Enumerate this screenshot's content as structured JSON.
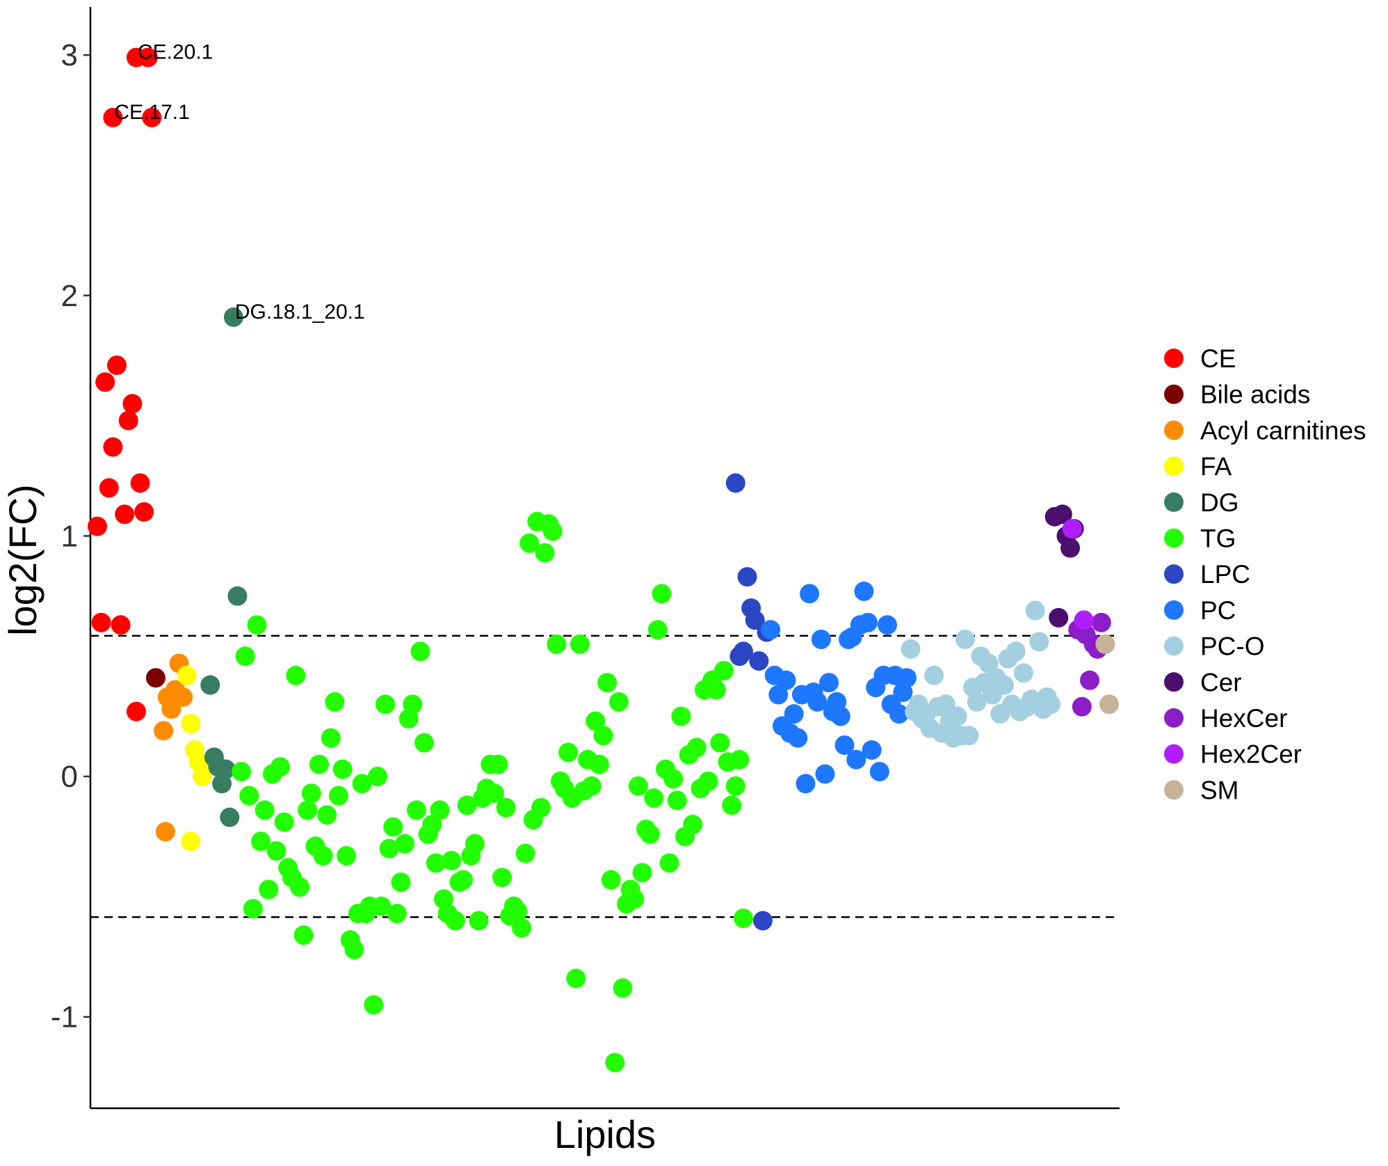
{
  "chart_data": {
    "type": "scatter",
    "title": "",
    "xlabel": "Lipids",
    "ylabel": "log2(FC)",
    "xlim": [
      0,
      262
    ],
    "ylim": [
      -1.38,
      3.2
    ],
    "yticks": [
      -1,
      0,
      1,
      2,
      3
    ],
    "threshold_lines": [
      0.585,
      -0.585
    ],
    "grid": false,
    "legend_position": "right",
    "annotations": [
      {
        "text": "CE.20.1",
        "x": 12,
        "y": 2.99
      },
      {
        "text": "CE.17.1",
        "x": 6,
        "y": 2.74
      },
      {
        "text": "DG.18.1_20.1",
        "x": 37,
        "y": 1.91
      }
    ],
    "series": [
      {
        "name": "CE",
        "color": "#ff0000",
        "x": [
          2,
          3,
          4,
          5,
          6,
          7,
          8,
          9,
          10,
          11,
          12,
          13,
          14,
          15,
          16,
          12,
          6
        ],
        "y": [
          1.04,
          0.64,
          1.64,
          1.2,
          1.37,
          1.71,
          0.63,
          1.09,
          1.48,
          1.55,
          0.27,
          1.22,
          1.1,
          2.99,
          2.74,
          2.99,
          2.74
        ]
      },
      {
        "name": "Bile acids",
        "color": "#7b0000",
        "x": [
          17
        ],
        "y": [
          0.41
        ]
      },
      {
        "name": "Acyl carnitines",
        "color": "#ff8c00",
        "x": [
          19,
          20,
          21,
          22,
          23,
          24,
          19.5
        ],
        "y": [
          0.19,
          0.33,
          0.28,
          0.36,
          0.47,
          0.33,
          -0.23
        ]
      },
      {
        "name": "FA",
        "color": "#ffff00",
        "x": [
          25,
          26,
          27,
          28,
          29,
          30,
          26
        ],
        "y": [
          0.42,
          0.22,
          0.11,
          0.06,
          0.0,
          0.04,
          -0.27
        ]
      },
      {
        "name": "DG",
        "color": "#367d62",
        "x": [
          31,
          32,
          33,
          34,
          35,
          36,
          37,
          38
        ],
        "y": [
          0.38,
          0.08,
          0.04,
          -0.03,
          0.03,
          -0.17,
          1.91,
          0.75
        ]
      },
      {
        "name": "TG",
        "color": "#22ff00",
        "x": [
          39,
          40,
          41,
          42,
          43,
          44,
          45,
          46,
          47,
          48,
          49,
          50,
          51,
          52,
          53,
          54,
          55,
          56,
          57,
          58,
          59,
          60,
          61,
          62,
          63,
          64,
          65,
          66,
          67,
          68,
          69,
          70,
          71,
          72,
          73,
          74,
          75,
          76,
          77,
          78,
          79,
          80,
          81,
          82,
          83,
          84,
          85,
          86,
          87,
          88,
          89,
          90,
          91,
          92,
          93,
          94,
          95,
          96,
          97,
          98,
          99,
          100,
          101,
          102,
          103,
          104,
          105,
          106,
          107,
          108,
          109,
          110,
          111,
          112,
          113,
          114,
          115,
          116,
          117,
          118,
          119,
          120,
          121,
          122,
          123,
          124,
          125,
          126,
          127,
          128,
          129,
          130,
          131,
          132,
          133,
          134,
          135,
          136,
          137,
          138,
          139,
          140,
          141,
          142,
          143,
          144,
          145,
          146,
          147,
          148,
          149,
          150,
          151,
          152,
          153,
          154,
          155,
          156,
          157,
          158,
          159,
          160,
          161,
          162,
          163,
          164,
          165,
          166,
          167,
          168
        ],
        "y": [
          0.02,
          0.5,
          -0.08,
          -0.55,
          0.63,
          -0.27,
          -0.14,
          -0.47,
          0.01,
          -0.31,
          0.04,
          -0.19,
          -0.38,
          -0.42,
          0.42,
          -0.46,
          -0.66,
          -0.14,
          -0.07,
          -0.29,
          0.05,
          -0.33,
          -0.16,
          0.16,
          0.31,
          -0.08,
          0.03,
          -0.33,
          -0.68,
          -0.72,
          -0.57,
          -0.03,
          -0.57,
          -0.54,
          -0.95,
          0.0,
          -0.54,
          0.3,
          -0.3,
          -0.21,
          -0.57,
          -0.44,
          -0.28,
          0.24,
          0.3,
          -0.14,
          0.52,
          0.14,
          -0.24,
          -0.2,
          -0.36,
          -0.14,
          -0.51,
          -0.57,
          -0.35,
          -0.6,
          -0.44,
          -0.43,
          -0.12,
          -0.33,
          -0.28,
          -0.6,
          -0.09,
          -0.05,
          0.05,
          -0.07,
          0.05,
          -0.42,
          -0.13,
          -0.58,
          -0.54,
          -0.56,
          -0.63,
          -0.32,
          0.97,
          -0.18,
          1.06,
          -0.13,
          0.93,
          1.05,
          1.02,
          0.55,
          -0.02,
          -0.05,
          0.1,
          -0.09,
          -0.84,
          0.55,
          -0.06,
          0.07,
          -0.04,
          0.23,
          0.05,
          0.17,
          0.39,
          -0.43,
          -1.19,
          0.31,
          -0.88,
          -0.53,
          -0.47,
          -0.51,
          -0.04,
          -0.4,
          -0.22,
          -0.24,
          -0.09,
          0.61,
          0.76,
          0.03,
          -0.36,
          -0.01,
          -0.1,
          0.25,
          -0.25,
          0.09,
          -0.2,
          0.12,
          -0.05,
          0.36,
          -0.02,
          0.4,
          0.36,
          0.14,
          0.44,
          0.06,
          -0.12,
          -0.04,
          0.07,
          -0.59
        ]
      },
      {
        "name": "LPC",
        "color": "#2c47c3",
        "x": [
          166,
          167,
          168,
          169,
          170,
          171,
          172,
          173,
          174
        ],
        "y": [
          1.22,
          0.5,
          0.52,
          0.83,
          0.7,
          0.65,
          0.48,
          -0.6,
          0.6
        ]
      },
      {
        "name": "PC",
        "color": "#1e78ff",
        "x": [
          175,
          176,
          177,
          178,
          179,
          180,
          181,
          182,
          183,
          184,
          185,
          186,
          187,
          188,
          189,
          190,
          191,
          192,
          193,
          194,
          195,
          196,
          197,
          198,
          199,
          200,
          201,
          202,
          203,
          204,
          205,
          206,
          207,
          208,
          209,
          210
        ],
        "y": [
          0.61,
          0.42,
          0.34,
          0.21,
          0.4,
          0.18,
          0.26,
          0.16,
          0.34,
          -0.03,
          0.76,
          0.35,
          0.31,
          0.57,
          0.01,
          0.39,
          0.27,
          0.31,
          0.25,
          0.13,
          0.57,
          0.58,
          0.07,
          0.63,
          0.77,
          0.64,
          0.11,
          0.37,
          0.02,
          0.42,
          0.63,
          0.3,
          0.42,
          0.26,
          0.35,
          0.41
        ]
      },
      {
        "name": "PC-O",
        "color": "#a3cfe0",
        "x": [
          211,
          212,
          213,
          214,
          215,
          216,
          217,
          218,
          219,
          220,
          221,
          222,
          223,
          224,
          225,
          226,
          227,
          228,
          229,
          230,
          231,
          232,
          233,
          234,
          235,
          236,
          237,
          238,
          239,
          240,
          241,
          242,
          243,
          244,
          245,
          246,
          247
        ],
        "y": [
          0.53,
          0.27,
          0.3,
          0.24,
          0.26,
          0.2,
          0.42,
          0.29,
          0.18,
          0.3,
          0.23,
          0.16,
          0.25,
          0.17,
          0.57,
          0.17,
          0.37,
          0.31,
          0.5,
          0.39,
          0.47,
          0.34,
          0.41,
          0.26,
          0.38,
          0.49,
          0.3,
          0.52,
          0.27,
          0.43,
          0.29,
          0.32,
          0.69,
          0.56,
          0.28,
          0.33,
          0.3
        ]
      },
      {
        "name": "Cer",
        "color": "#4b0f6e",
        "x": [
          248,
          249,
          250,
          251,
          252,
          253
        ],
        "y": [
          1.08,
          0.66,
          1.09,
          1.0,
          0.95,
          1.03
        ]
      },
      {
        "name": "HexCer",
        "color": "#8b1ec8",
        "x": [
          254,
          255,
          256,
          257,
          258,
          259,
          260
        ],
        "y": [
          0.61,
          0.29,
          0.59,
          0.4,
          0.55,
          0.53,
          0.64
        ]
      },
      {
        "name": "Hex2Cer",
        "color": "#b01eff",
        "x": [
          252.5,
          255.5
        ],
        "y": [
          1.03,
          0.65
        ]
      },
      {
        "name": "SM",
        "color": "#c7b29a",
        "x": [
          261,
          262
        ],
        "y": [
          0.55,
          0.3
        ]
      }
    ]
  },
  "legend": {
    "items": [
      {
        "label": "CE",
        "color": "#ff0000"
      },
      {
        "label": "Bile acids",
        "color": "#7b0000"
      },
      {
        "label": "Acyl carnitines",
        "color": "#ff8c00"
      },
      {
        "label": "FA",
        "color": "#ffff00"
      },
      {
        "label": "DG",
        "color": "#367d62"
      },
      {
        "label": "TG",
        "color": "#22ff00"
      },
      {
        "label": "LPC",
        "color": "#2c47c3"
      },
      {
        "label": "PC",
        "color": "#1e78ff"
      },
      {
        "label": "PC-O",
        "color": "#a3cfe0"
      },
      {
        "label": "Cer",
        "color": "#4b0f6e"
      },
      {
        "label": "HexCer",
        "color": "#8b1ec8"
      },
      {
        "label": "Hex2Cer",
        "color": "#b01eff"
      },
      {
        "label": "SM",
        "color": "#c7b29a"
      }
    ]
  }
}
